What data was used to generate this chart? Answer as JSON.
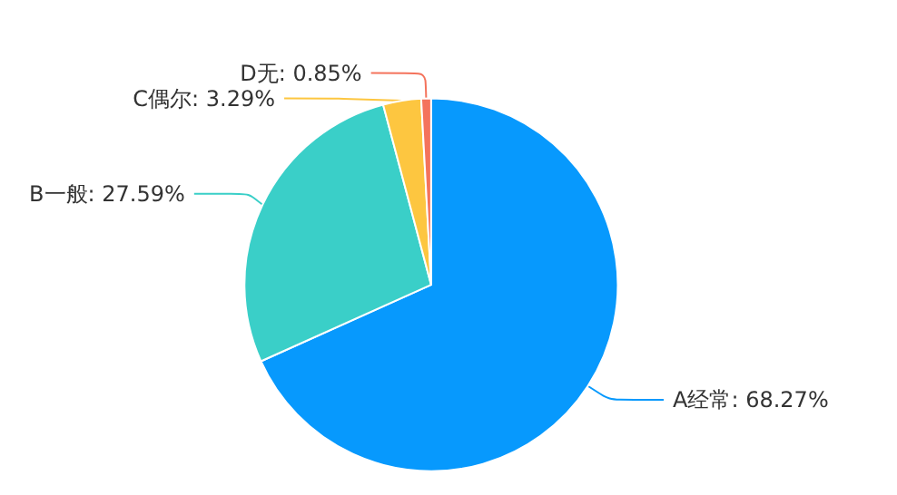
{
  "chart_data": {
    "type": "pie",
    "categories": [
      "A经常",
      "B一般",
      "C偶尔",
      "D无"
    ],
    "values": [
      68.27,
      27.59,
      3.29,
      0.85
    ],
    "value_labels": [
      "68.27%",
      "27.59%",
      "3.29%",
      "0.85%"
    ],
    "colors": [
      "#0799fd",
      "#3acfc8",
      "#fdc640",
      "#f4735c"
    ],
    "legend": false
  }
}
